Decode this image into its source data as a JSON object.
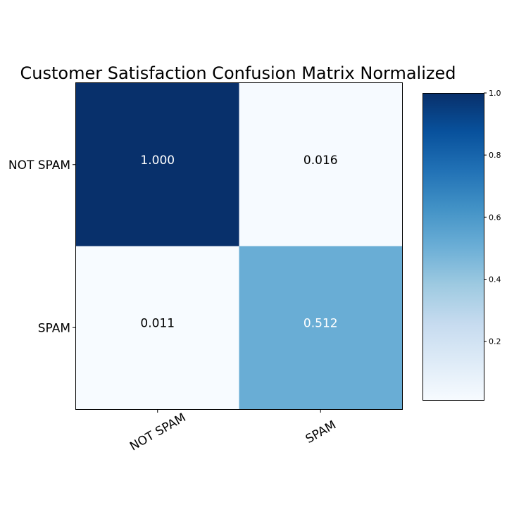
{
  "chart_data": {
    "type": "heatmap",
    "title": "Customer Satisfaction Confusion Matrix Normalized",
    "x_categories": [
      "NOT SPAM",
      "SPAM"
    ],
    "y_categories": [
      "NOT SPAM",
      "SPAM"
    ],
    "values": [
      [
        1.0,
        0.016
      ],
      [
        0.011,
        0.512
      ]
    ],
    "value_labels": [
      [
        "1.000",
        "0.016"
      ],
      [
        "0.011",
        "0.512"
      ]
    ],
    "colormap": "Blues",
    "colorbar": {
      "range": [
        0.011,
        1.0
      ],
      "ticks": [
        0.2,
        0.4,
        0.6,
        0.8,
        1.0
      ],
      "tick_labels": [
        "0.2",
        "0.4",
        "0.6",
        "0.8",
        "1.0"
      ]
    },
    "x_tick_rotation": 30,
    "grid": false
  }
}
